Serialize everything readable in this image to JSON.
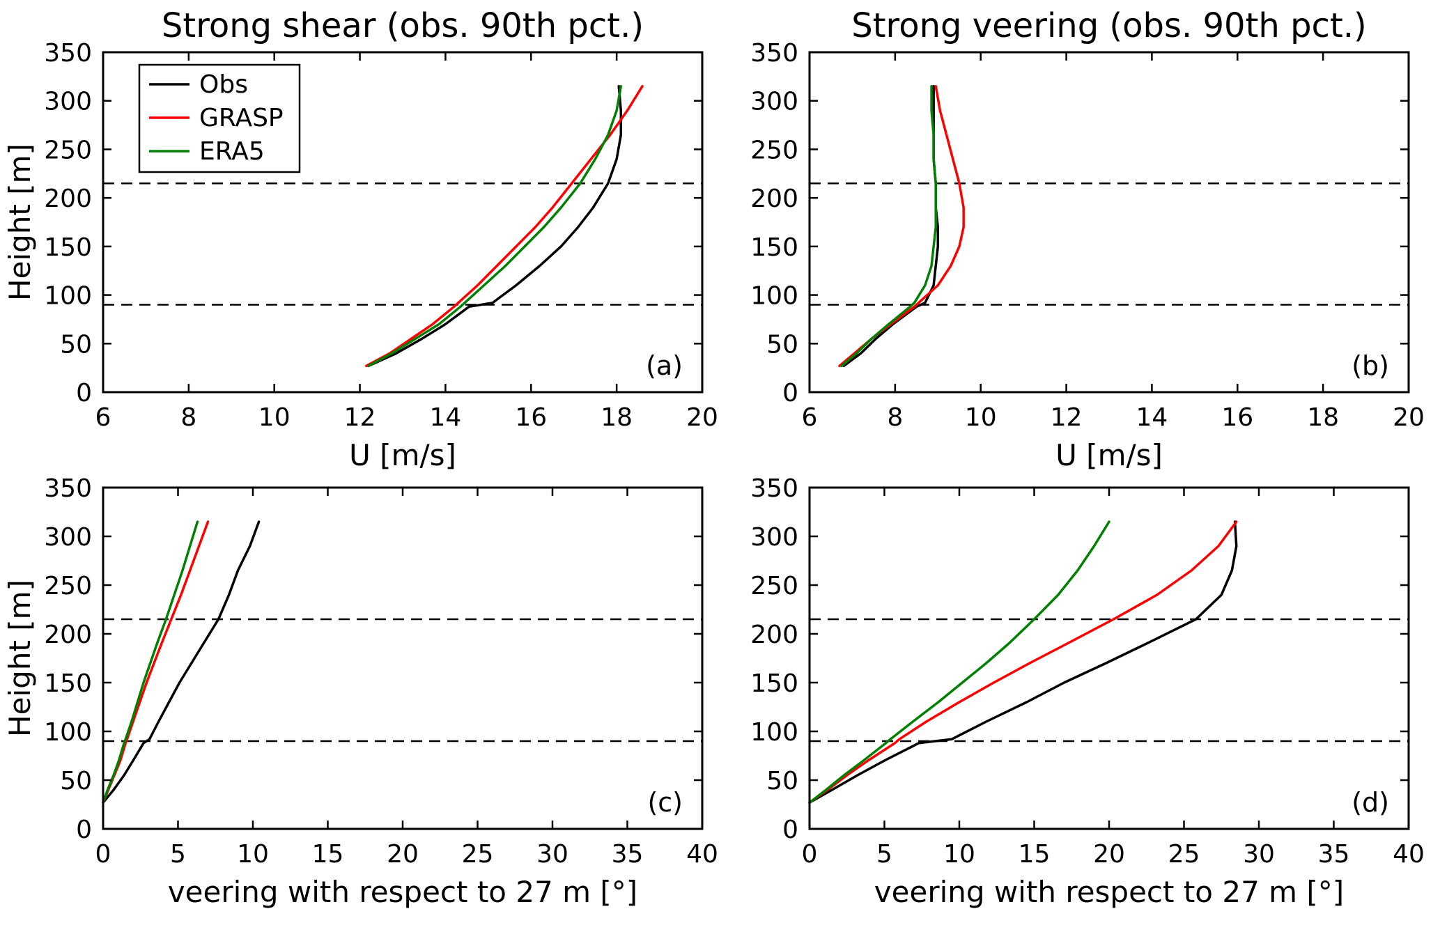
{
  "figure": {
    "background": "#ffffff",
    "axis_color": "#000000",
    "legend": {
      "items": [
        {
          "label": "Obs",
          "color": "#000000"
        },
        {
          "label": "GRASP",
          "color": "#ff0000"
        },
        {
          "label": "ERA5",
          "color": "#008000"
        }
      ]
    }
  },
  "chart_data": [
    {
      "id": "a",
      "type": "line",
      "title": "Strong shear (obs. 90th pct.)",
      "xlabel": "U [m/s]",
      "ylabel": "Height [m]",
      "panel_label": "(a)",
      "xlim": [
        6,
        20
      ],
      "ylim": [
        0,
        350
      ],
      "xticks": [
        6,
        8,
        10,
        12,
        14,
        16,
        18,
        20
      ],
      "yticks": [
        0,
        50,
        100,
        150,
        200,
        250,
        300,
        350
      ],
      "dashed_heights": [
        90,
        215
      ],
      "show_legend": true,
      "heights": [
        27,
        40,
        55,
        70,
        88,
        92,
        110,
        130,
        150,
        170,
        190,
        215,
        240,
        265,
        290,
        315
      ],
      "series": [
        {
          "name": "Obs",
          "color": "#000000",
          "values": [
            12.2,
            12.85,
            13.45,
            14.0,
            14.55,
            15.1,
            15.65,
            16.2,
            16.7,
            17.1,
            17.45,
            17.8,
            18.0,
            18.1,
            18.1,
            18.05
          ]
        },
        {
          "name": "GRASP",
          "color": "#ff0000",
          "values": [
            12.15,
            12.7,
            13.2,
            13.7,
            14.2,
            14.3,
            14.75,
            15.2,
            15.65,
            16.1,
            16.5,
            16.95,
            17.4,
            17.85,
            18.25,
            18.6
          ]
        },
        {
          "name": "ERA5",
          "color": "#008000",
          "values": [
            12.2,
            12.75,
            13.3,
            13.85,
            14.35,
            14.45,
            14.9,
            15.4,
            15.85,
            16.3,
            16.7,
            17.15,
            17.5,
            17.8,
            18.0,
            18.1
          ]
        }
      ]
    },
    {
      "id": "b",
      "type": "line",
      "title": "Strong veering (obs. 90th pct.)",
      "xlabel": "U [m/s]",
      "ylabel": "",
      "panel_label": "(b)",
      "xlim": [
        6,
        20
      ],
      "ylim": [
        0,
        350
      ],
      "xticks": [
        6,
        8,
        10,
        12,
        14,
        16,
        18,
        20
      ],
      "yticks": [
        0,
        50,
        100,
        150,
        200,
        250,
        300,
        350
      ],
      "dashed_heights": [
        90,
        215
      ],
      "show_legend": false,
      "heights": [
        27,
        40,
        55,
        70,
        88,
        92,
        110,
        130,
        150,
        170,
        190,
        215,
        240,
        265,
        290,
        315
      ],
      "series": [
        {
          "name": "Obs",
          "color": "#000000",
          "values": [
            6.8,
            7.2,
            7.55,
            7.95,
            8.5,
            8.7,
            8.9,
            8.95,
            9.0,
            9.0,
            8.95,
            8.95,
            8.9,
            8.9,
            8.9,
            8.9
          ]
        },
        {
          "name": "GRASP",
          "color": "#ff0000",
          "values": [
            6.7,
            7.05,
            7.45,
            7.9,
            8.45,
            8.55,
            9.0,
            9.3,
            9.5,
            9.6,
            9.6,
            9.5,
            9.35,
            9.2,
            9.05,
            8.95
          ]
        },
        {
          "name": "ERA5",
          "color": "#008000",
          "values": [
            6.75,
            7.1,
            7.45,
            7.85,
            8.35,
            8.45,
            8.7,
            8.85,
            8.9,
            8.95,
            8.95,
            8.95,
            8.9,
            8.9,
            8.85,
            8.85
          ]
        }
      ]
    },
    {
      "id": "c",
      "type": "line",
      "title": "",
      "xlabel": "veering with respect to 27 m [°]",
      "ylabel": "Height [m]",
      "panel_label": "(c)",
      "xlim": [
        0,
        40
      ],
      "ylim": [
        0,
        350
      ],
      "xticks": [
        0,
        5,
        10,
        15,
        20,
        25,
        30,
        35,
        40
      ],
      "yticks": [
        0,
        50,
        100,
        150,
        200,
        250,
        300,
        350
      ],
      "dashed_heights": [
        90,
        215
      ],
      "show_legend": false,
      "heights": [
        27,
        40,
        55,
        70,
        88,
        92,
        110,
        130,
        150,
        170,
        190,
        215,
        240,
        265,
        290,
        315
      ],
      "series": [
        {
          "name": "Obs",
          "color": "#000000",
          "values": [
            0,
            0.7,
            1.4,
            2.0,
            2.7,
            3.1,
            3.7,
            4.4,
            5.1,
            5.9,
            6.7,
            7.7,
            8.4,
            9.0,
            9.8,
            10.4
          ]
        },
        {
          "name": "GRASP",
          "color": "#ff0000",
          "values": [
            0,
            0.35,
            0.75,
            1.15,
            1.5,
            1.6,
            2.0,
            2.45,
            2.9,
            3.4,
            3.9,
            4.55,
            5.2,
            5.8,
            6.4,
            7.0
          ]
        },
        {
          "name": "ERA5",
          "color": "#008000",
          "values": [
            0,
            0.3,
            0.7,
            1.05,
            1.4,
            1.5,
            1.9,
            2.3,
            2.7,
            3.15,
            3.6,
            4.2,
            4.75,
            5.3,
            5.8,
            6.3
          ]
        }
      ]
    },
    {
      "id": "d",
      "type": "line",
      "title": "",
      "xlabel": "veering with respect to 27 m [°]",
      "ylabel": "",
      "panel_label": "(d)",
      "xlim": [
        0,
        40
      ],
      "ylim": [
        0,
        350
      ],
      "xticks": [
        0,
        5,
        10,
        15,
        20,
        25,
        30,
        35,
        40
      ],
      "yticks": [
        0,
        50,
        100,
        150,
        200,
        250,
        300,
        350
      ],
      "dashed_heights": [
        90,
        215
      ],
      "show_legend": false,
      "heights": [
        27,
        40,
        55,
        70,
        88,
        92,
        110,
        130,
        150,
        170,
        190,
        215,
        240,
        265,
        290,
        315
      ],
      "series": [
        {
          "name": "Obs",
          "color": "#000000",
          "values": [
            0,
            1.5,
            3.2,
            5.0,
            7.3,
            9.5,
            11.8,
            14.5,
            17.0,
            19.8,
            22.5,
            25.8,
            27.5,
            28.2,
            28.5,
            28.4
          ]
        },
        {
          "name": "GRASP",
          "color": "#ff0000",
          "values": [
            0,
            1.2,
            2.5,
            3.9,
            5.7,
            6.0,
            7.8,
            10.0,
            12.3,
            14.7,
            17.2,
            20.3,
            23.2,
            25.5,
            27.3,
            28.5
          ]
        },
        {
          "name": "ERA5",
          "color": "#008000",
          "values": [
            0,
            1.1,
            2.3,
            3.6,
            5.1,
            5.4,
            6.9,
            8.6,
            10.2,
            11.8,
            13.3,
            15.0,
            16.6,
            17.9,
            19.0,
            20.0
          ]
        }
      ]
    }
  ]
}
